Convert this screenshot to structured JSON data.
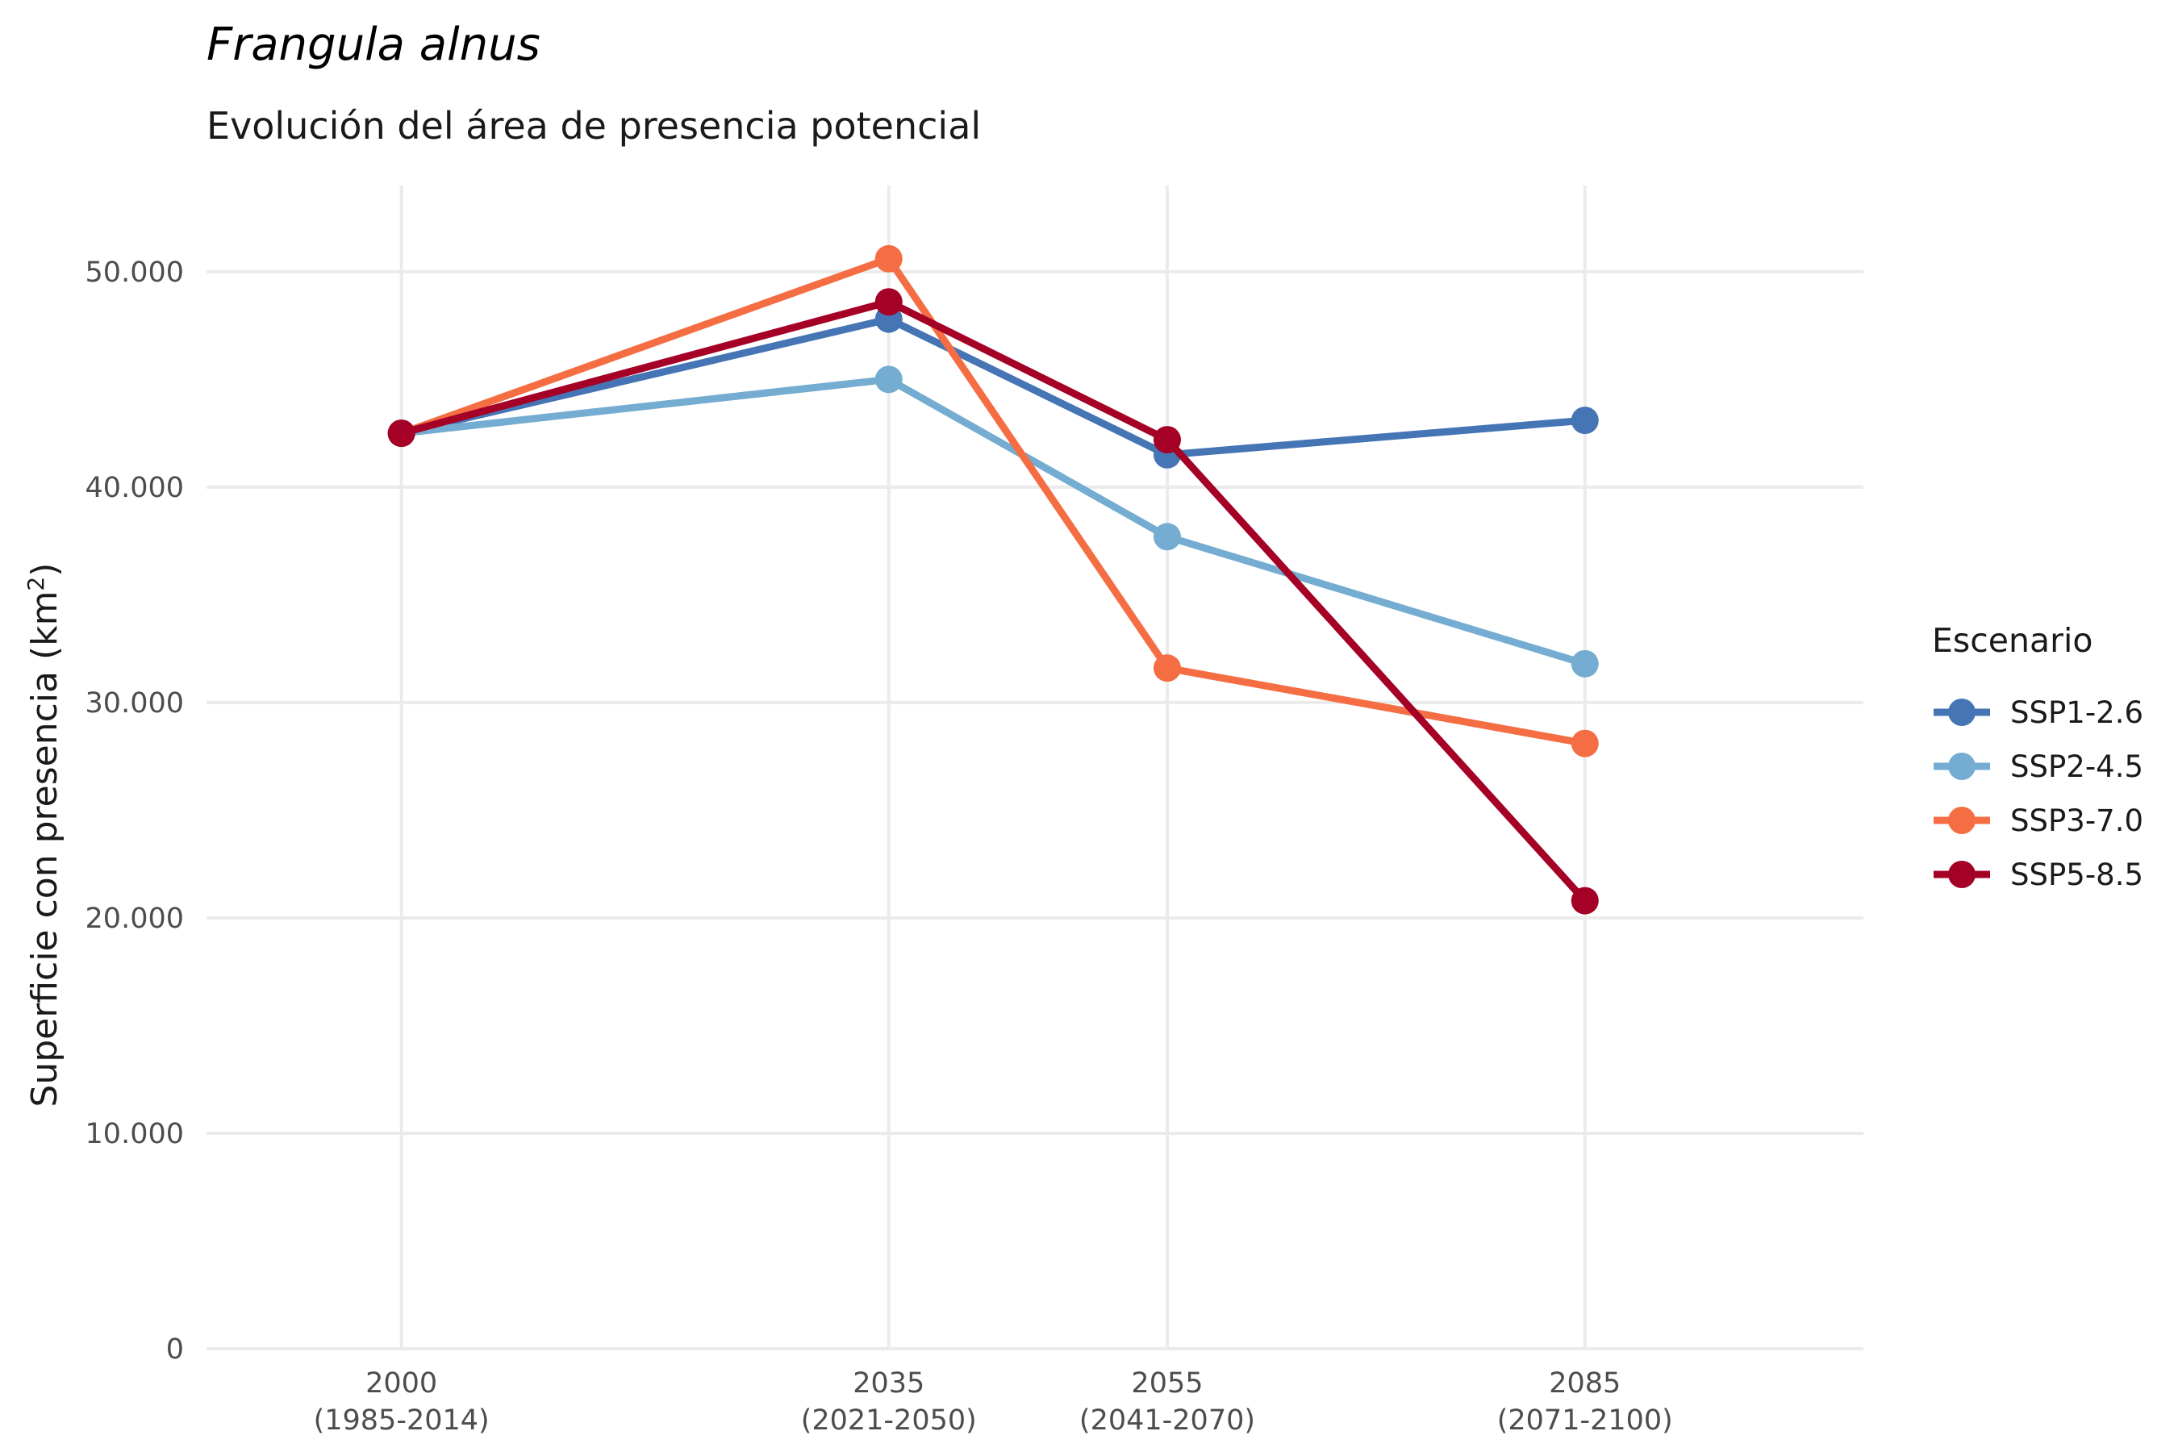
{
  "chart_data": {
    "type": "line",
    "title": "Frangula alnus",
    "subtitle": "Evolución del área de presencia potencial",
    "ylabel_main": "Superficie con presencia (km",
    "ylabel_sup": "2",
    "ylabel_end": ")",
    "xlabel": "",
    "x": [
      2000,
      2035,
      2055,
      2085
    ],
    "x_tick_labels": [
      {
        "year": "2000",
        "period": "(1985-2014)"
      },
      {
        "year": "2035",
        "period": "(2021-2050)"
      },
      {
        "year": "2055",
        "period": "(2041-2070)"
      },
      {
        "year": "2085",
        "period": "(2071-2100)"
      }
    ],
    "xlim": [
      1986,
      2105
    ],
    "ylim": [
      0,
      54000
    ],
    "y_ticks": [
      0,
      10000,
      20000,
      30000,
      40000,
      50000
    ],
    "y_tick_labels": [
      "0",
      "10.000",
      "20.000",
      "30.000",
      "40.000",
      "50.000"
    ],
    "grid": true,
    "legend_title": "Escenario",
    "legend_position": "right",
    "series": [
      {
        "name": "SSP1-2.6",
        "color": "#4575b4",
        "values": [
          42500,
          47800,
          41500,
          43100
        ]
      },
      {
        "name": "SSP2-4.5",
        "color": "#74add1",
        "values": [
          42500,
          45000,
          37700,
          31800
        ]
      },
      {
        "name": "SSP3-7.0",
        "color": "#f46d43",
        "values": [
          42500,
          50600,
          31600,
          28100
        ]
      },
      {
        "name": "SSP5-8.5",
        "color": "#a50026",
        "values": [
          42500,
          48600,
          42200,
          20800
        ]
      }
    ]
  }
}
